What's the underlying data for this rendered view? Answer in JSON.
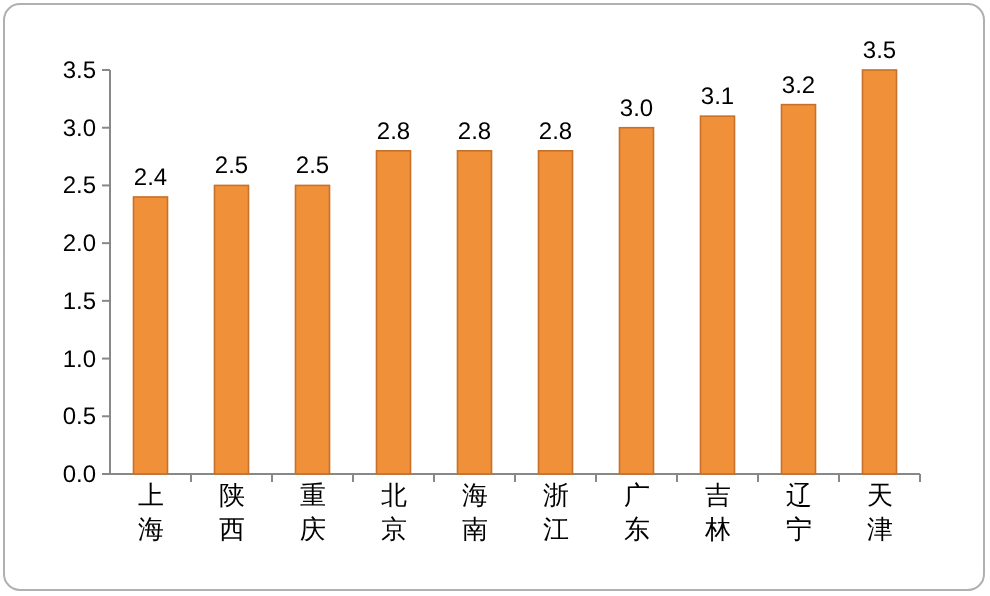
{
  "chart_data": {
    "type": "bar",
    "categories": [
      "上海",
      "陕西",
      "重庆",
      "北京",
      "海南",
      "浙江",
      "广东",
      "吉林",
      "辽宁",
      "天津"
    ],
    "values": [
      2.4,
      2.5,
      2.5,
      2.8,
      2.8,
      2.8,
      3.0,
      3.1,
      3.2,
      3.5
    ],
    "value_labels": [
      "2.4",
      "2.5",
      "2.5",
      "2.8",
      "2.8",
      "2.8",
      "3.0",
      "3.1",
      "3.2",
      "3.5"
    ],
    "color": "#f0913a",
    "ylim": [
      0,
      3.5
    ],
    "yticks": [
      {
        "value": 0,
        "label": "0.0"
      },
      {
        "value": 0.5,
        "label": "0.5"
      },
      {
        "value": 1,
        "label": "1.0"
      },
      {
        "value": 1.5,
        "label": "1.5"
      },
      {
        "value": 2,
        "label": "2.0"
      },
      {
        "value": 2.5,
        "label": "2.5"
      },
      {
        "value": 3,
        "label": "3.0"
      },
      {
        "value": 3.5,
        "label": "3.5"
      }
    ],
    "grid": false
  }
}
